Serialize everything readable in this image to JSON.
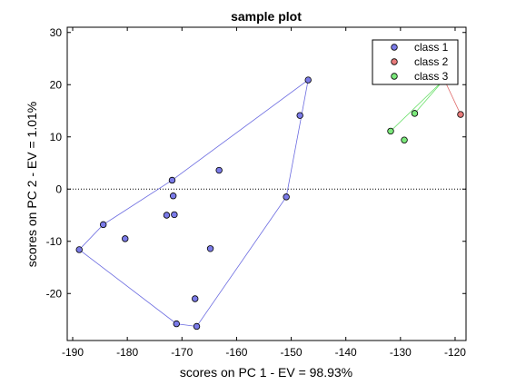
{
  "chart_data": {
    "type": "scatter",
    "title": "sample plot",
    "xlabel": "scores on PC 1 - EV = 98.93%",
    "ylabel": "scores on PC 2 - EV = 1.01%",
    "xlim": [
      -191,
      -118
    ],
    "ylim": [
      -29,
      31
    ],
    "xticks": [
      -190,
      -180,
      -170,
      -160,
      -150,
      -140,
      -130,
      -120
    ],
    "yticks": [
      -20,
      -10,
      0,
      10,
      20,
      30
    ],
    "zero_line": {
      "y": 0,
      "style": "dotted"
    },
    "grid": false,
    "legend_position": "top-right",
    "series": [
      {
        "name": "class 1",
        "color": "#7b7be8",
        "hull_color": "#6a6ae0",
        "x": [
          -146.9,
          -148.4,
          -163.2,
          -150.9,
          -171.8,
          -171.6,
          -171.4,
          -172.8,
          -184.4,
          -180.4,
          -164.8,
          -188.8,
          -167.6,
          -171.0,
          -167.3
        ],
        "y": [
          20.9,
          14.1,
          3.6,
          -1.5,
          1.7,
          -1.3,
          -4.9,
          -5.0,
          -6.8,
          -9.5,
          -11.4,
          -11.6,
          -21.0,
          -25.8,
          -26.3
        ],
        "hull": [
          0,
          3,
          14,
          13,
          11,
          8,
          4
        ]
      },
      {
        "name": "class 2",
        "color": "#e87b7b",
        "hull_color": "#e06a6a",
        "x": [
          -119.0
        ],
        "y": [
          14.3
        ],
        "hull": []
      },
      {
        "name": "class 3",
        "color": "#7be87b",
        "hull_color": "#6ae06a",
        "x": [
          -127.4,
          -129.3,
          -131.8
        ],
        "y": [
          14.5,
          9.4,
          11.1
        ],
        "hull": []
      }
    ],
    "annotations": [
      {
        "from_series": 1,
        "from_point": 0,
        "to_xy": [
          -122.0,
          21.0
        ]
      },
      {
        "from_series": 2,
        "from_point": 0,
        "to_xy": [
          -122.0,
          21.0
        ]
      },
      {
        "from_series": 2,
        "from_point": 2,
        "to_xy": [
          -122.0,
          21.0
        ]
      }
    ]
  }
}
